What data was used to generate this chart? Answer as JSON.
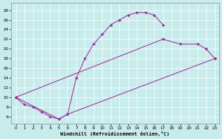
{
  "xlabel": "Windchill (Refroidissement éolien,°C)",
  "bg_color": "#c8ecec",
  "line_color": "#993399",
  "xlim": [
    -0.5,
    23.5
  ],
  "ylim": [
    4.5,
    29.5
  ],
  "xticks": [
    0,
    1,
    2,
    3,
    4,
    5,
    6,
    7,
    8,
    9,
    10,
    11,
    12,
    13,
    14,
    15,
    16,
    17,
    18,
    19,
    20,
    21,
    22,
    23
  ],
  "yticks": [
    6,
    8,
    10,
    12,
    14,
    16,
    18,
    20,
    22,
    24,
    26,
    28
  ],
  "line1_x": [
    0,
    1,
    2,
    3,
    4,
    5,
    6,
    7,
    8,
    9,
    10,
    11,
    12,
    13,
    14,
    15,
    16,
    17
  ],
  "line1_y": [
    10,
    8.5,
    8,
    7,
    6,
    5.5,
    6.5,
    14,
    18,
    21,
    23,
    25,
    26,
    27,
    27.5,
    27.5,
    27,
    25
  ],
  "line2_x": [
    0,
    17,
    19,
    21,
    22,
    23
  ],
  "line2_y": [
    10,
    22,
    21,
    21,
    20,
    18
  ],
  "line3_x": [
    0,
    5,
    6,
    23
  ],
  "line3_y": [
    10,
    5.5,
    6.5,
    18
  ]
}
